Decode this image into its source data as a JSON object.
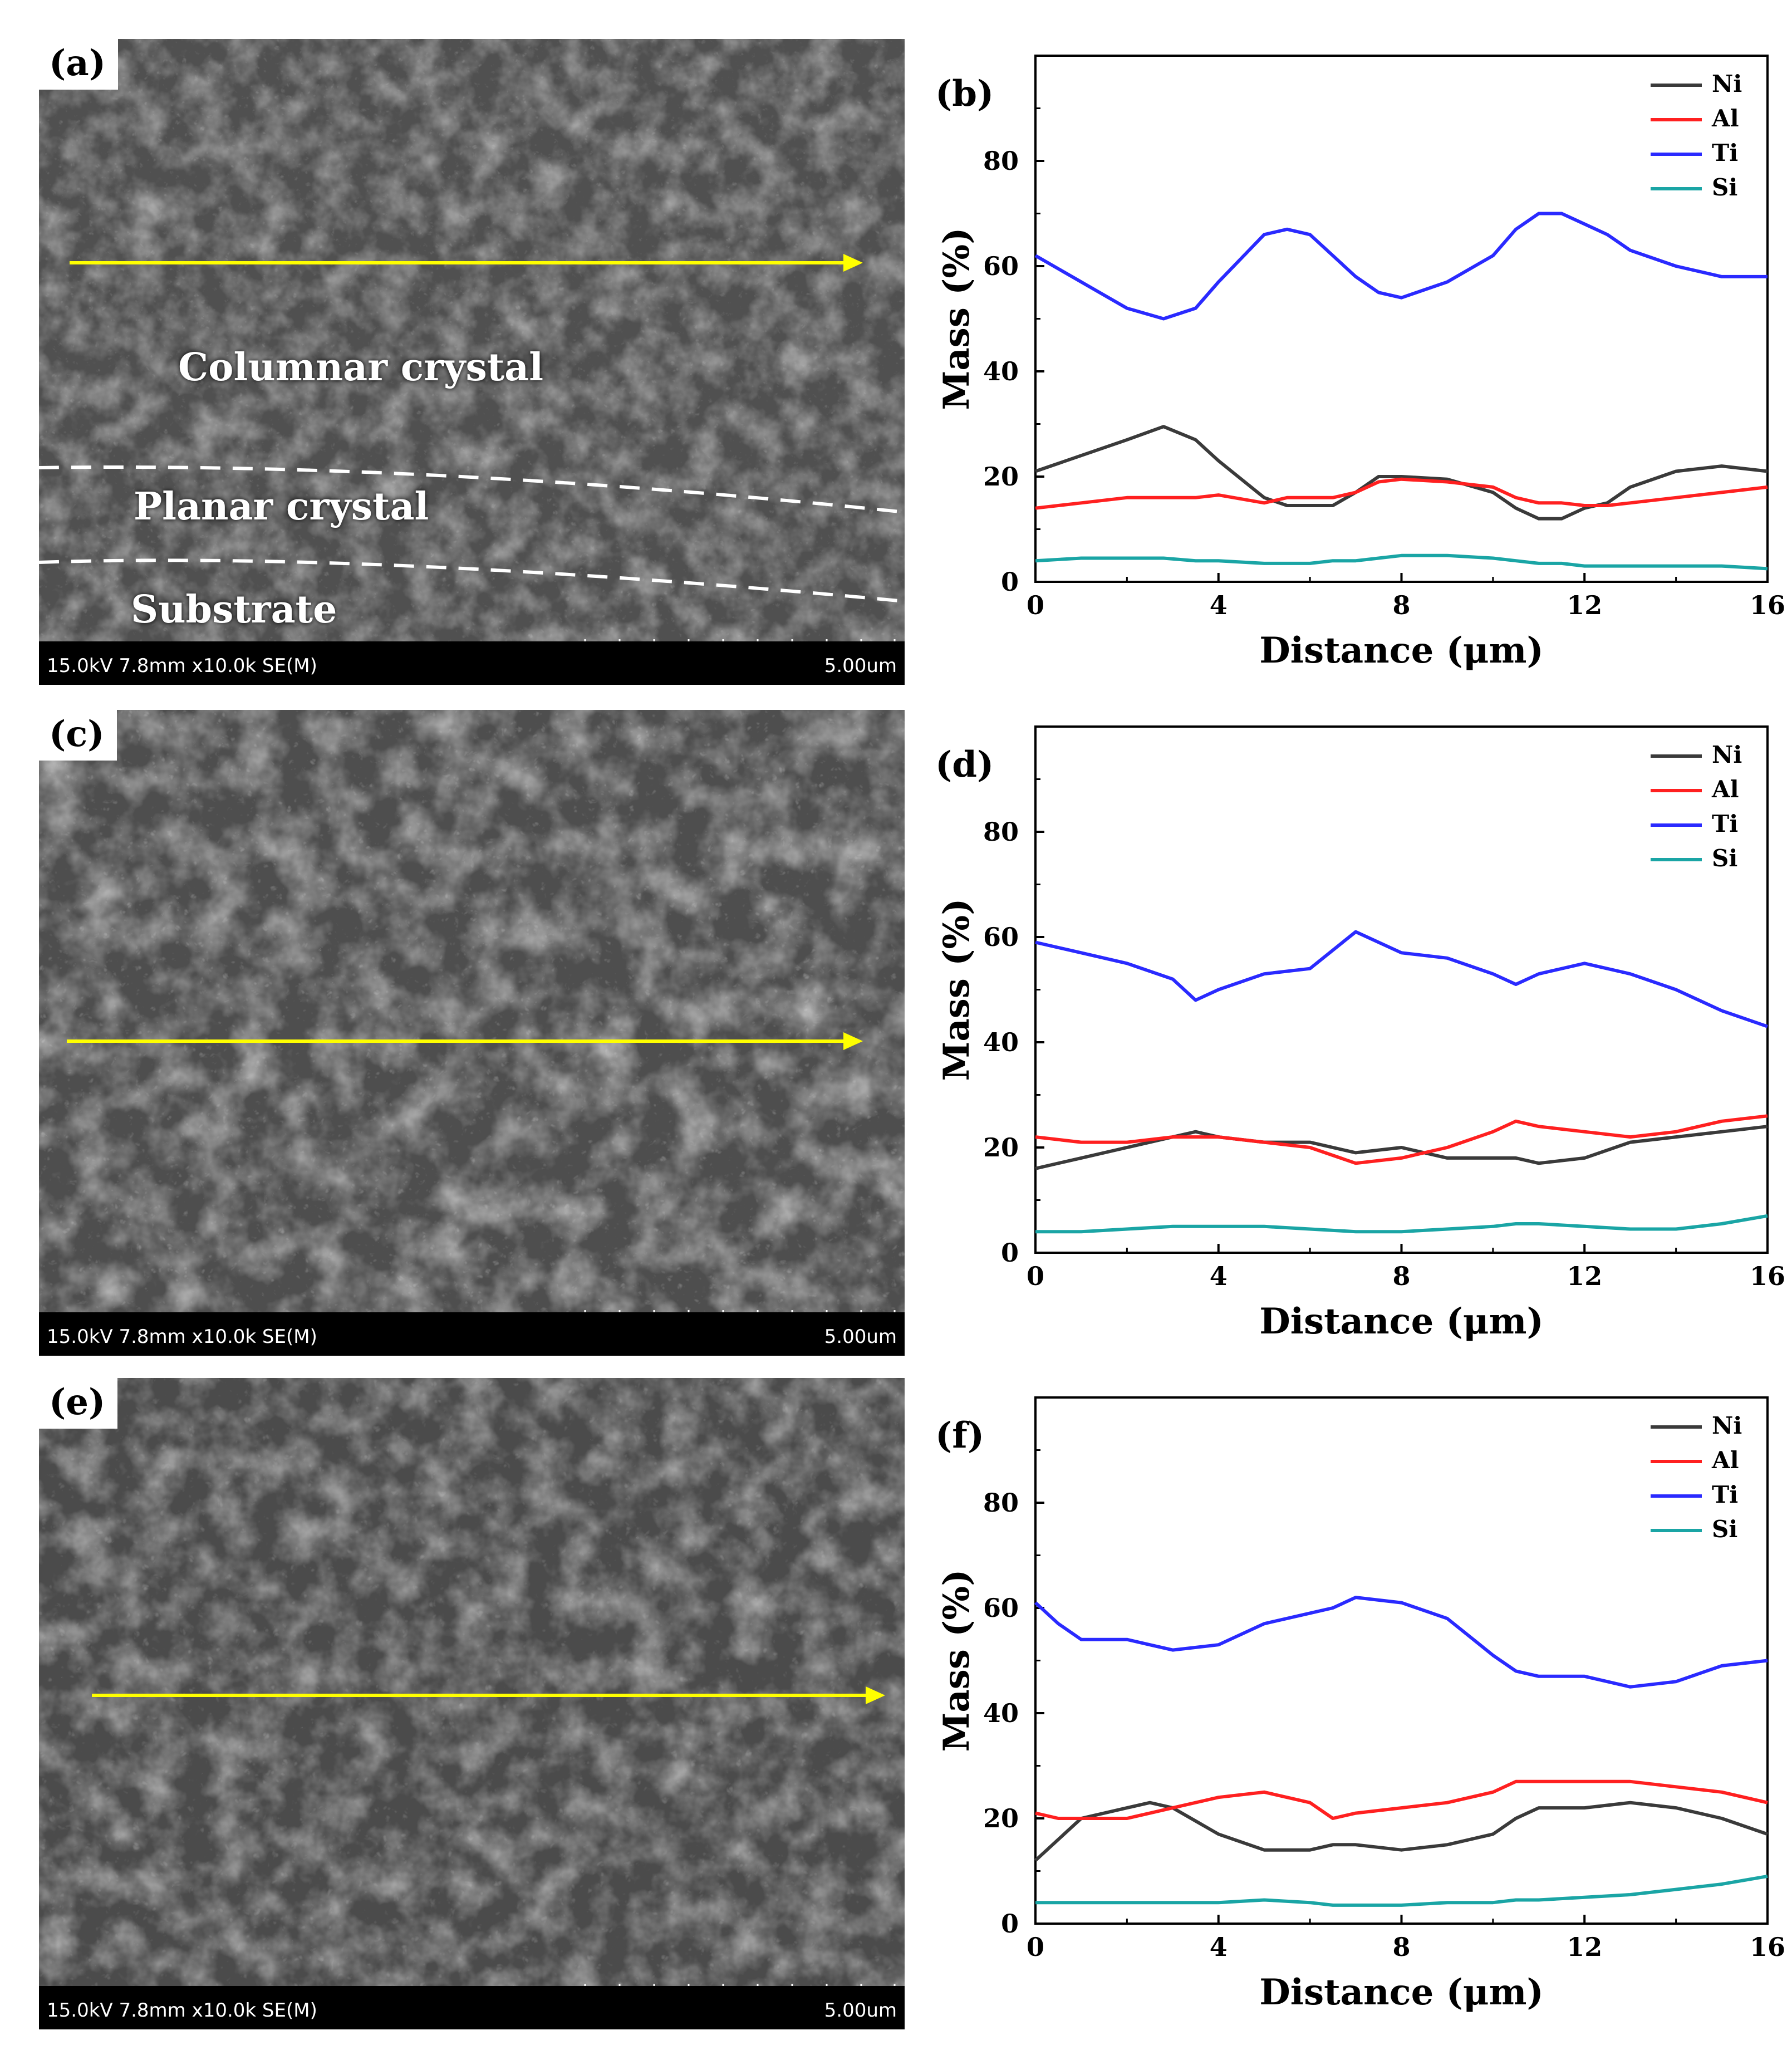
{
  "sem_panels": [
    {
      "label": "(a)",
      "info_left": "15.0kV 7.8mm x10.0k SE(M)",
      "info_right": "5.00um",
      "regions": [
        "Columnar crystal",
        "Planar crystal",
        "Substrate"
      ]
    },
    {
      "label": "(c)",
      "info_left": "15.0kV 7.8mm x10.0k SE(M)",
      "info_right": "5.00um",
      "regions": []
    },
    {
      "label": "(e)",
      "info_left": "15.0kV 7.8mm x10.0k SE(M)",
      "info_right": "5.00um",
      "regions": []
    }
  ],
  "colors": {
    "Ni": "#3a3a3a",
    "Al": "#ff2020",
    "Ti": "#2a2aff",
    "Si": "#1aa5a5",
    "arrow": "#ffff00"
  },
  "chart_data": [
    {
      "type": "line",
      "panel": "(b)",
      "xlabel": "Distance (μm)",
      "ylabel": "Mass (%)",
      "xlim": [
        0,
        16
      ],
      "ylim": [
        0,
        100
      ],
      "xticks": [
        0,
        4,
        8,
        12,
        16
      ],
      "yticks": [
        0,
        20,
        40,
        60,
        80
      ],
      "legend": [
        "Ni",
        "Al",
        "Ti",
        "Si"
      ],
      "legend_position": "top-right",
      "x": [
        0,
        1,
        2,
        2.8,
        3.5,
        4,
        5,
        5.5,
        6,
        6.5,
        7,
        7.5,
        8,
        9,
        10,
        10.5,
        11,
        11.5,
        12,
        12.5,
        13,
        14,
        15,
        16
      ],
      "series": [
        {
          "name": "Ni",
          "values": [
            21,
            24,
            27,
            29.5,
            27,
            23,
            16,
            14.5,
            14.5,
            14.5,
            17,
            20,
            20,
            19.5,
            17,
            14,
            12,
            12,
            14,
            15,
            18,
            21,
            22,
            21
          ]
        },
        {
          "name": "Al",
          "values": [
            14,
            15,
            16,
            16,
            16,
            16.5,
            15,
            16,
            16,
            16,
            17,
            19,
            19.5,
            19,
            18,
            16,
            15,
            15,
            14.5,
            14.5,
            15,
            16,
            17,
            18
          ]
        },
        {
          "name": "Ti",
          "values": [
            62,
            57,
            52,
            50,
            52,
            57,
            66,
            67,
            66,
            62,
            58,
            55,
            54,
            57,
            62,
            67,
            70,
            70,
            68,
            66,
            63,
            60,
            58,
            58
          ]
        },
        {
          "name": "Si",
          "values": [
            4,
            4.5,
            4.5,
            4.5,
            4,
            4,
            3.5,
            3.5,
            3.5,
            4,
            4,
            4.5,
            5,
            5,
            4.5,
            4,
            3.5,
            3.5,
            3,
            3,
            3,
            3,
            3,
            2.5
          ]
        }
      ]
    },
    {
      "type": "line",
      "panel": "(d)",
      "xlabel": "Distance (μm)",
      "ylabel": "Mass (%)",
      "xlim": [
        0,
        16
      ],
      "ylim": [
        0,
        100
      ],
      "xticks": [
        0,
        4,
        8,
        12,
        16
      ],
      "yticks": [
        0,
        20,
        40,
        60,
        80
      ],
      "legend": [
        "Ni",
        "Al",
        "Ti",
        "Si"
      ],
      "legend_position": "top-right",
      "x": [
        0,
        1,
        2,
        3,
        3.5,
        4,
        5,
        6,
        7,
        8,
        9,
        10,
        10.5,
        11,
        12,
        13,
        14,
        15,
        16
      ],
      "series": [
        {
          "name": "Ni",
          "values": [
            16,
            18,
            20,
            22,
            23,
            22,
            21,
            21,
            19,
            20,
            18,
            18,
            18,
            17,
            18,
            21,
            22,
            23,
            24
          ]
        },
        {
          "name": "Al",
          "values": [
            22,
            21,
            21,
            22,
            22,
            22,
            21,
            20,
            17,
            18,
            20,
            23,
            25,
            24,
            23,
            22,
            23,
            25,
            26
          ]
        },
        {
          "name": "Ti",
          "values": [
            59,
            57,
            55,
            52,
            48,
            50,
            53,
            54,
            61,
            57,
            56,
            53,
            51,
            53,
            55,
            53,
            50,
            46,
            43
          ]
        },
        {
          "name": "Si",
          "values": [
            4,
            4,
            4.5,
            5,
            5,
            5,
            5,
            4.5,
            4,
            4,
            4.5,
            5,
            5.5,
            5.5,
            5,
            4.5,
            4.5,
            5.5,
            7
          ]
        }
      ]
    },
    {
      "type": "line",
      "panel": "(f)",
      "xlabel": "Distance (μm)",
      "ylabel": "Mass (%)",
      "xlim": [
        0,
        16
      ],
      "ylim": [
        0,
        100
      ],
      "xticks": [
        0,
        4,
        8,
        12,
        16
      ],
      "yticks": [
        0,
        20,
        40,
        60,
        80
      ],
      "legend": [
        "Ni",
        "Al",
        "Ti",
        "Si"
      ],
      "legend_position": "top-right",
      "x": [
        0,
        0.5,
        1,
        1.5,
        2,
        2.5,
        3,
        4,
        5,
        6,
        6.5,
        7,
        8,
        9,
        10,
        10.5,
        11,
        12,
        13,
        14,
        15,
        16
      ],
      "series": [
        {
          "name": "Ni",
          "values": [
            12,
            16,
            20,
            21,
            22,
            23,
            22,
            17,
            14,
            14,
            15,
            15,
            14,
            15,
            17,
            20,
            22,
            22,
            23,
            22,
            20,
            17
          ]
        },
        {
          "name": "Al",
          "values": [
            21,
            20,
            20,
            20,
            20,
            21,
            22,
            24,
            25,
            23,
            20,
            21,
            22,
            23,
            25,
            27,
            27,
            27,
            27,
            26,
            25,
            23
          ]
        },
        {
          "name": "Ti",
          "values": [
            61,
            57,
            54,
            54,
            54,
            53,
            52,
            53,
            57,
            59,
            60,
            62,
            61,
            58,
            51,
            48,
            47,
            47,
            45,
            46,
            49,
            50
          ]
        },
        {
          "name": "Si",
          "values": [
            4,
            4,
            4,
            4,
            4,
            4,
            4,
            4,
            4.5,
            4,
            3.5,
            3.5,
            3.5,
            4,
            4,
            4.5,
            4.5,
            5,
            5.5,
            6.5,
            7.5,
            9
          ]
        }
      ]
    }
  ]
}
